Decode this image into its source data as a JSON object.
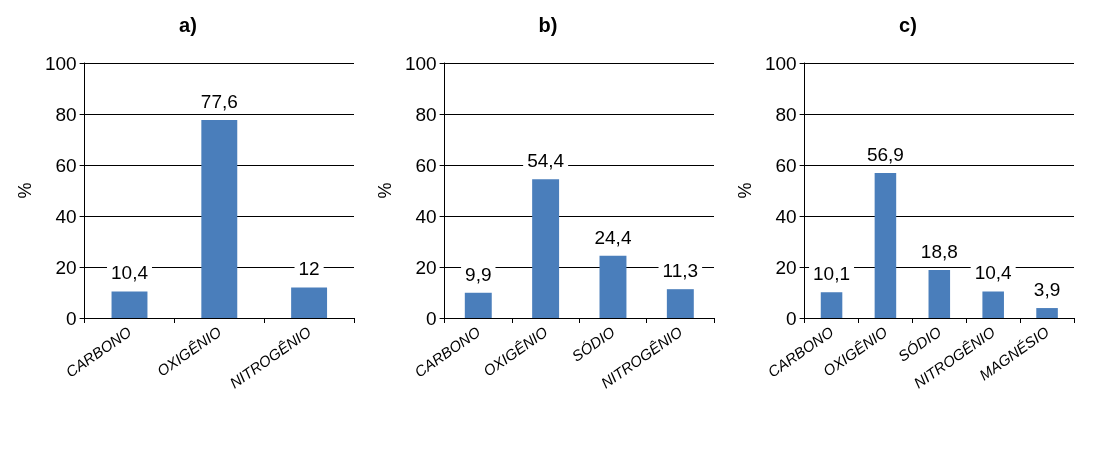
{
  "chart_data": [
    {
      "type": "bar",
      "title": "a)",
      "ylabel": "%",
      "categories": [
        "CARBONO",
        "OXIGÊNIO",
        "NITROGÊNIO"
      ],
      "values": [
        10.4,
        77.6,
        12
      ],
      "value_labels": [
        "10,4",
        "77,6",
        "12"
      ],
      "color": "#4a7ebb",
      "ylim": [
        0,
        100
      ],
      "yticks": [
        0,
        20,
        40,
        60,
        80,
        100
      ],
      "grid": "y"
    },
    {
      "type": "bar",
      "title": "b)",
      "ylabel": "%",
      "categories": [
        "CARBONO",
        "OXIGÊNIO",
        "SÓDIO",
        "NITROGÊNIO"
      ],
      "values": [
        9.9,
        54.4,
        24.4,
        11.3
      ],
      "value_labels": [
        "9,9",
        "54,4",
        "24,4",
        "11,3"
      ],
      "color": "#4a7ebb",
      "ylim": [
        0,
        100
      ],
      "yticks": [
        0,
        20,
        40,
        60,
        80,
        100
      ],
      "grid": "y"
    },
    {
      "type": "bar",
      "title": "c)",
      "ylabel": "%",
      "categories": [
        "CARBONO",
        "OXIGÊNIO",
        "SÓDIO",
        "NITROGÊNIO",
        "MAGNÉSIO"
      ],
      "values": [
        10.1,
        56.9,
        18.8,
        10.4,
        3.9
      ],
      "value_labels": [
        "10,1",
        "56,9",
        "18,8",
        "10,4",
        "3,9"
      ],
      "color": "#4a7ebb",
      "ylim": [
        0,
        100
      ],
      "yticks": [
        0,
        20,
        40,
        60,
        80,
        100
      ],
      "grid": "y"
    }
  ]
}
